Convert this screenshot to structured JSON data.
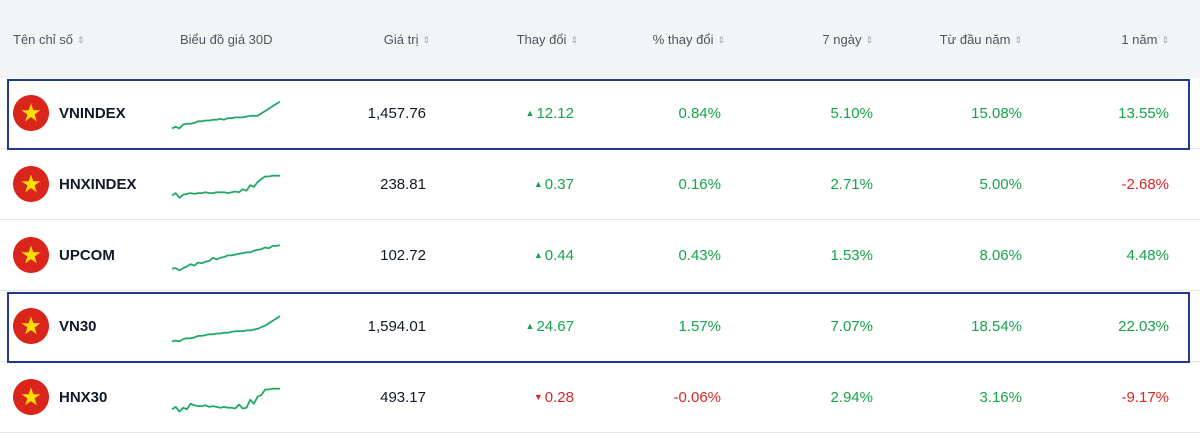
{
  "header": {
    "name": "Tên chỉ số",
    "chart": "Biểu đồ giá 30D",
    "value": "Giá trị",
    "change": "Thay đổi",
    "pct_change": "% thay đổi",
    "d7": "7 ngày",
    "ytd": "Từ đầu năm",
    "y1": "1 năm",
    "sort_icon": "⇕"
  },
  "colors": {
    "up": "#16a34a",
    "down": "#dc2626",
    "highlight": "#1e3a8a",
    "flag_red": "#da251d",
    "flag_star": "#ffde00",
    "spark": "#22a865"
  },
  "rows": [
    {
      "name": "VNINDEX",
      "value": "1,457.76",
      "change": "12.12",
      "change_dir": "up",
      "change_arrow": "▲",
      "pct": "0.84%",
      "d7": "5.10%",
      "ytd": "15.08%",
      "y1": "13.55%",
      "y1_dir": "up",
      "pct_dir": "up",
      "highlight": true,
      "spark": [
        1.0,
        1.2,
        1.0,
        1.5,
        1.6,
        1.6,
        1.7,
        1.9,
        1.9,
        2.0,
        2.0,
        2.1,
        2.1,
        2.2,
        2.1,
        2.3,
        2.3,
        2.4,
        2.4,
        2.4,
        2.5,
        2.6,
        2.6,
        2.6,
        2.9,
        3.2,
        3.5,
        3.8,
        4.1,
        4.4
      ]
    },
    {
      "name": "HNXINDEX",
      "value": "238.81",
      "change": "0.37",
      "change_dir": "up",
      "change_arrow": "▲",
      "pct": "0.16%",
      "d7": "2.71%",
      "ytd": "5.00%",
      "y1": "-2.68%",
      "y1_dir": "down",
      "pct_dir": "up",
      "highlight": false,
      "spark": [
        1.5,
        1.8,
        1.2,
        1.6,
        1.7,
        1.8,
        1.7,
        1.8,
        1.8,
        1.9,
        1.8,
        1.8,
        1.9,
        1.9,
        1.9,
        1.8,
        1.9,
        2.0,
        1.9,
        2.3,
        2.1,
        2.8,
        2.6,
        3.2,
        3.6,
        3.9,
        3.9,
        4.0,
        4.0,
        4.0
      ]
    },
    {
      "name": "UPCOM",
      "value": "102.72",
      "change": "0.44",
      "change_dir": "up",
      "change_arrow": "▲",
      "pct": "0.43%",
      "d7": "1.53%",
      "ytd": "8.06%",
      "y1": "4.48%",
      "y1_dir": "up",
      "pct_dir": "up",
      "highlight": false,
      "spark": [
        1.2,
        1.3,
        1.0,
        1.3,
        1.5,
        1.8,
        1.6,
        2.0,
        1.9,
        2.1,
        2.2,
        2.6,
        2.4,
        2.6,
        2.7,
        2.9,
        2.9,
        3.0,
        3.1,
        3.2,
        3.3,
        3.3,
        3.5,
        3.6,
        3.7,
        3.9,
        3.8,
        4.1,
        4.1,
        4.2
      ]
    },
    {
      "name": "VN30",
      "value": "1,594.01",
      "change": "24.67",
      "change_dir": "up",
      "change_arrow": "▲",
      "pct": "1.57%",
      "d7": "7.07%",
      "ytd": "18.54%",
      "y1": "22.03%",
      "y1_dir": "up",
      "pct_dir": "up",
      "highlight": true,
      "spark": [
        1.0,
        1.1,
        1.0,
        1.3,
        1.4,
        1.4,
        1.5,
        1.7,
        1.7,
        1.8,
        1.9,
        1.9,
        2.0,
        2.0,
        2.1,
        2.1,
        2.2,
        2.3,
        2.3,
        2.3,
        2.4,
        2.4,
        2.5,
        2.6,
        2.8,
        3.0,
        3.3,
        3.6,
        3.9,
        4.2
      ]
    },
    {
      "name": "HNX30",
      "value": "493.17",
      "change": "0.28",
      "change_dir": "down",
      "change_arrow": "▼",
      "pct": "-0.06%",
      "d7": "2.94%",
      "ytd": "3.16%",
      "y1": "-9.17%",
      "y1_dir": "down",
      "pct_dir": "down",
      "highlight": false,
      "spark": [
        1.4,
        1.7,
        1.1,
        1.6,
        1.4,
        2.1,
        1.9,
        1.8,
        1.8,
        1.9,
        1.7,
        1.8,
        1.7,
        1.6,
        1.7,
        1.6,
        1.6,
        1.5,
        2.0,
        1.5,
        1.6,
        2.6,
        2.1,
        3.0,
        3.2,
        3.9,
        3.9,
        4.0,
        4.0,
        4.0
      ]
    }
  ]
}
